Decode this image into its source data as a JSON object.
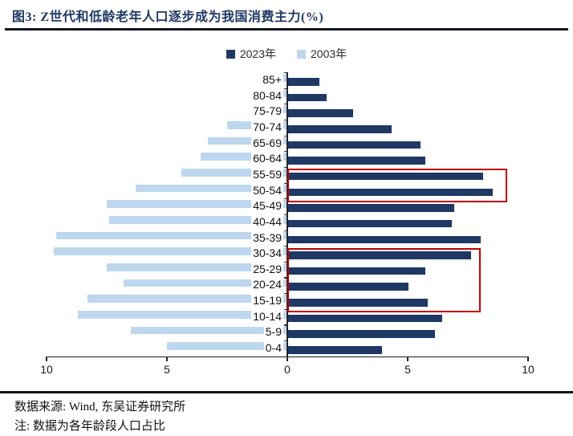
{
  "figure_label": "图3:",
  "title_text": "Z世代和低龄老年人口逐步成为我国消费主力(%)",
  "footer": {
    "source_line": "数据来源: Wind, 东吴证券研究所",
    "note_line": "注: 数据为各年龄段人口占比"
  },
  "chart_data": {
    "type": "bar",
    "subtype": "population-pyramid-horizontal",
    "title": "图3: Z世代和低龄老年人口逐步成为我国消费主力(%)",
    "categories_top_to_bottom": [
      "85+",
      "80-84",
      "75-79",
      "70-74",
      "65-69",
      "60-64",
      "55-59",
      "50-54",
      "45-49",
      "40-44",
      "35-39",
      "30-34",
      "25-29",
      "20-24",
      "15-19",
      "10-14",
      "5-9",
      "0-4"
    ],
    "series": [
      {
        "name": "2023年",
        "side": "right",
        "color": "#1F3864",
        "values": [
          1.3,
          1.6,
          2.7,
          4.3,
          5.5,
          5.7,
          8.1,
          8.5,
          6.9,
          6.8,
          8.0,
          7.6,
          5.7,
          5.0,
          5.8,
          6.4,
          6.1,
          3.9
        ]
      },
      {
        "name": "2003年",
        "side": "left",
        "color": "#BDD7EE",
        "values": [
          0.5,
          1.0,
          1.5,
          2.5,
          3.3,
          3.6,
          4.4,
          6.3,
          7.5,
          7.4,
          9.6,
          9.7,
          7.5,
          6.8,
          8.3,
          8.7,
          6.5,
          5.0
        ]
      }
    ],
    "x_axis": {
      "tick_labels": [
        "10",
        "5",
        "0",
        "5",
        "10"
      ],
      "tick_values": [
        -10,
        -5,
        0,
        5,
        10
      ],
      "range": [
        -10,
        10
      ],
      "note": "left half = 2003年 share, right half = 2023年 share, units %"
    },
    "legend_position": "top-center",
    "grid": false,
    "annotations": [
      {
        "name": "highlight-55-59-and-50-54",
        "row_start": 6,
        "row_end": 7,
        "value_extent": 9.0,
        "color": "#C00000"
      },
      {
        "name": "highlight-30-34-to-15-19",
        "row_start": 11,
        "row_end": 14,
        "value_extent": 7.9,
        "color": "#C00000"
      }
    ]
  }
}
